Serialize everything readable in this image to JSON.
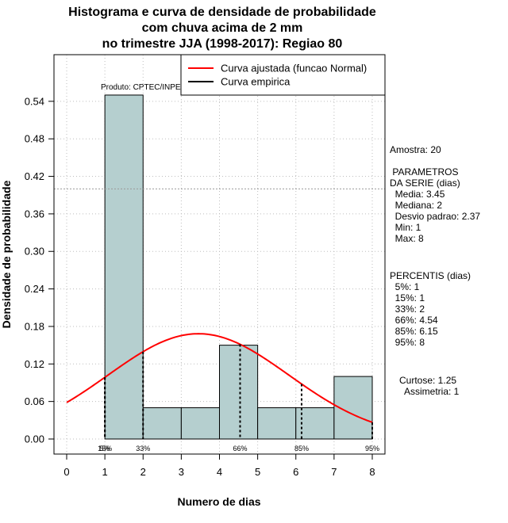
{
  "chart_data": {
    "type": "bar",
    "title_lines": [
      "Histograma e curva de densidade de probabilidade",
      "com chuva acima de 2 mm",
      "no trimestre JJA (1998-2017): Regiao 80"
    ],
    "xlabel": "Numero de dias",
    "ylabel": "Densidade de probabilidade",
    "xlim": [
      0,
      8
    ],
    "ylim": [
      0,
      0.6
    ],
    "x_ticks": [
      0,
      1,
      2,
      3,
      4,
      5,
      6,
      7,
      8
    ],
    "y_ticks": [
      "0.00",
      "0.06",
      "0.12",
      "0.18",
      "0.24",
      "0.30",
      "0.36",
      "0.42",
      "0.48",
      "0.54"
    ],
    "bins": [
      {
        "from": 1,
        "to": 2,
        "density": 0.55
      },
      {
        "from": 2,
        "to": 3,
        "density": 0.05
      },
      {
        "from": 3,
        "to": 4,
        "density": 0.05
      },
      {
        "from": 4,
        "to": 5,
        "density": 0.15
      },
      {
        "from": 5,
        "to": 6,
        "density": 0.05
      },
      {
        "from": 6,
        "to": 7,
        "density": 0.05
      },
      {
        "from": 7,
        "to": 8,
        "density": 0.1
      }
    ],
    "horizontal_reference_line": 0.4,
    "normal_curve": {
      "mean": 3.45,
      "sd": 2.37,
      "x_range": [
        0,
        8
      ]
    },
    "percentile_lines": [
      {
        "label": "5%",
        "x": 1
      },
      {
        "label": "15%",
        "x": 1
      },
      {
        "label": "33%",
        "x": 2
      },
      {
        "label": "66%",
        "x": 4.54
      },
      {
        "label": "85%",
        "x": 6.15
      },
      {
        "label": "95%",
        "x": 8
      }
    ],
    "legend": {
      "position": "top-right",
      "entries": [
        {
          "label": "Curva ajustada (funcao Normal)",
          "color": "#ff0000"
        },
        {
          "label": "Curva empirica",
          "color": "#000000"
        }
      ]
    },
    "annotation": "Produto: CPTEC/INPE",
    "bar_color": "#b5cfcf",
    "curve_color": "#ff0000",
    "grid": true
  },
  "stats_panel": {
    "amostra": "Amostra: 20",
    "param_title_1": " PARAMETROS",
    "param_title_2": "DA SERIE (dias)",
    "media": "  Media: 3.45",
    "mediana": "  Mediana: 2",
    "desvio": "  Desvio padrao: 2.37",
    "min": "  Min: 1",
    "max": "  Max: 8",
    "percentis_title": "PERCENTIS (dias)",
    "p5": "  5%: 1",
    "p15": "  15%: 1",
    "p33": "  33%: 2",
    "p66": "  66%: 4.54",
    "p85": "  85%: 6.15",
    "p95": "  95%: 8",
    "curtose": "Curtose: 1.25",
    "assimetria": "  Assimetria: 1"
  }
}
